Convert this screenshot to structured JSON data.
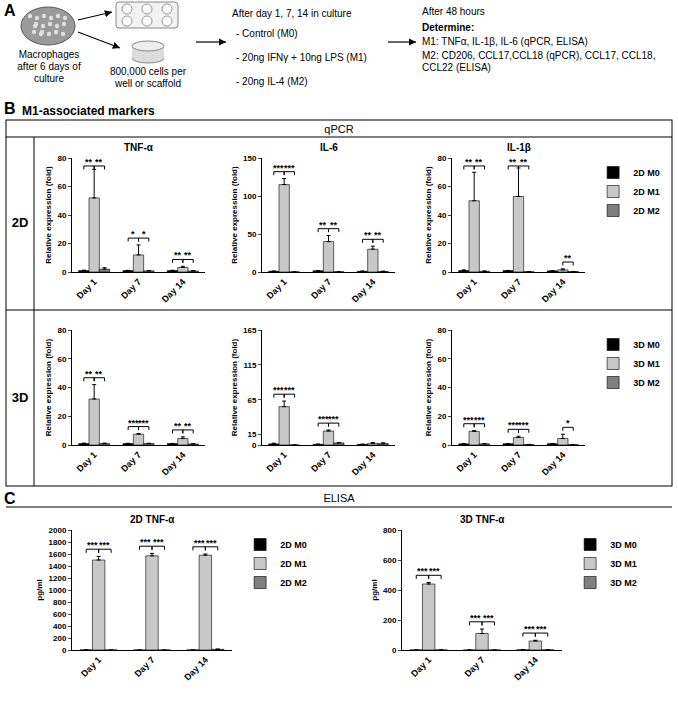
{
  "panel_a": {
    "label": "A",
    "cells": "Macrophages after 6 days of culture",
    "seeding": "800,000 cells per well or scaffold",
    "treatment_title": "After day 1, 7, 14 in culture",
    "treatments": [
      "- Control (M0)",
      "- 20ng IFNγ + 10ng LPS (M1)",
      "- 20ng IL-4 (M2)"
    ],
    "readout_title": "After 48 hours",
    "readout_heading": "Determine:",
    "readouts": [
      "M1: TNFα, IL-1β, IL-6 (qPCR, ELISA)",
      "M2: CD206, CCL17,CCL18 (qPCR), CCL17, CCL18, CCL22 (ELISA)"
    ]
  },
  "panel_b": {
    "label": "B",
    "title": "M1-associated markers",
    "method": "qPCR",
    "rows": [
      "2D",
      "3D"
    ]
  },
  "panel_c": {
    "label": "C",
    "method": "ELISA"
  },
  "chart_data": [
    {
      "type": "bar",
      "title": "TNF-α",
      "y_label": "Relative expression (fold)",
      "categories": [
        "Day 1",
        "Day 7",
        "Day 14"
      ],
      "series": [
        {
          "name": "2D M0",
          "color": "#000000",
          "values": [
            1,
            1,
            1
          ],
          "errors": [
            0.3,
            0.2,
            0.2
          ]
        },
        {
          "name": "2D M1",
          "color": "#c8c8c8",
          "values": [
            52,
            12,
            3.2
          ],
          "errors": [
            20,
            7,
            0.8
          ]
        },
        {
          "name": "2D M2",
          "color": "#7f7f7f",
          "values": [
            2,
            0.8,
            0.7
          ],
          "errors": [
            1,
            0.2,
            0.3
          ]
        }
      ],
      "ylim": [
        0,
        80
      ],
      "yticks": [
        0,
        20,
        40,
        60,
        80
      ],
      "annotations": [
        {
          "text": "**",
          "category": 0,
          "between": [
            0,
            1
          ]
        },
        {
          "text": "**",
          "category": 0,
          "between": [
            1,
            2
          ]
        },
        {
          "text": "*",
          "category": 1,
          "between": [
            0,
            1
          ]
        },
        {
          "text": "*",
          "category": 1,
          "between": [
            1,
            2
          ]
        },
        {
          "text": "**",
          "category": 2,
          "between": [
            0,
            1
          ]
        },
        {
          "text": "**",
          "category": 2,
          "between": [
            1,
            2
          ]
        }
      ]
    },
    {
      "type": "bar",
      "title": "IL-6",
      "y_label": "Relative expression (fold)",
      "categories": [
        "Day 1",
        "Day 7",
        "Day 14"
      ],
      "series": [
        {
          "name": "2D M0",
          "color": "#000000",
          "values": [
            1,
            1.6,
            0.9
          ],
          "errors": [
            0.2,
            0.3,
            0.3
          ]
        },
        {
          "name": "2D M1",
          "color": "#c8c8c8",
          "values": [
            115,
            40,
            30
          ],
          "errors": [
            8,
            8,
            4
          ]
        },
        {
          "name": "2D M2",
          "color": "#7f7f7f",
          "values": [
            0.1,
            0.3,
            0.7
          ],
          "errors": [
            0.05,
            0.1,
            0.4
          ]
        }
      ],
      "ylim": [
        0,
        150
      ],
      "yticks": [
        0,
        50,
        100,
        150
      ],
      "annotations": [
        {
          "text": "***",
          "category": 0,
          "between": [
            0,
            1
          ]
        },
        {
          "text": "***",
          "category": 0,
          "between": [
            1,
            2
          ]
        },
        {
          "text": "**",
          "category": 1,
          "between": [
            0,
            1
          ]
        },
        {
          "text": "**",
          "category": 1,
          "between": [
            1,
            2
          ]
        },
        {
          "text": "**",
          "category": 2,
          "between": [
            0,
            1
          ]
        },
        {
          "text": "**",
          "category": 2,
          "between": [
            1,
            2
          ]
        }
      ]
    },
    {
      "type": "bar",
      "title": "IL-1β",
      "y_label": "Relative expression (fold)",
      "legend": "right",
      "categories": [
        "Day 1",
        "Day 7",
        "Day 14"
      ],
      "series": [
        {
          "name": "2D M0",
          "color": "#000000",
          "values": [
            1,
            1,
            0.8
          ],
          "errors": [
            0.5,
            0.1,
            0.1
          ]
        },
        {
          "name": "2D M1",
          "color": "#c8c8c8",
          "values": [
            50,
            53,
            1.5
          ],
          "errors": [
            20,
            20,
            0.7
          ]
        },
        {
          "name": "2D M2",
          "color": "#7f7f7f",
          "values": [
            0.5,
            0.2,
            0.3
          ],
          "errors": [
            0.2,
            0.1,
            0.1
          ]
        }
      ],
      "ylim": [
        0,
        80
      ],
      "yticks": [
        0,
        20,
        40,
        60,
        80
      ],
      "annotations": [
        {
          "text": "**",
          "category": 0,
          "between": [
            0,
            1
          ]
        },
        {
          "text": "**",
          "category": 0,
          "between": [
            1,
            2
          ]
        },
        {
          "text": "**",
          "category": 1,
          "between": [
            0,
            1
          ]
        },
        {
          "text": "**",
          "category": 1,
          "between": [
            1,
            2
          ]
        },
        {
          "text": "**",
          "category": 2,
          "between": [
            1,
            2
          ]
        }
      ]
    },
    {
      "type": "bar",
      "y_label": "Relative expression (fold)",
      "categories": [
        "Day 1",
        "Day 7",
        "Day 14"
      ],
      "series": [
        {
          "name": "3D M0",
          "color": "#000000",
          "values": [
            1,
            1,
            1
          ],
          "errors": [
            0.3,
            0.2,
            0.1
          ]
        },
        {
          "name": "3D M1",
          "color": "#c8c8c8",
          "values": [
            32,
            7.5,
            4.5
          ],
          "errors": [
            10,
            0.5,
            1.2
          ]
        },
        {
          "name": "3D M2",
          "color": "#7f7f7f",
          "values": [
            1,
            1,
            0.7
          ],
          "errors": [
            0.3,
            0.2,
            0.3
          ]
        }
      ],
      "ylim": [
        0,
        80
      ],
      "yticks": [
        0,
        20,
        40,
        60,
        80
      ],
      "annotations": [
        {
          "text": "**",
          "category": 0,
          "between": [
            0,
            1
          ]
        },
        {
          "text": "**",
          "category": 0,
          "between": [
            1,
            2
          ]
        },
        {
          "text": "***",
          "category": 1,
          "between": [
            0,
            1
          ]
        },
        {
          "text": "***",
          "category": 1,
          "between": [
            1,
            2
          ]
        },
        {
          "text": "**",
          "category": 2,
          "between": [
            0,
            1
          ]
        },
        {
          "text": "**",
          "category": 2,
          "between": [
            1,
            2
          ]
        }
      ]
    },
    {
      "type": "bar",
      "y_label": "Relative expression (fold)",
      "categories": [
        "Day 1",
        "Day 7",
        "Day 14"
      ],
      "series": [
        {
          "name": "3D M0",
          "color": "#000000",
          "values": [
            1.6,
            1,
            0.9
          ],
          "errors": [
            1,
            0.2,
            0.2
          ]
        },
        {
          "name": "3D M1",
          "color": "#c8c8c8",
          "values": [
            55,
            20,
            2.4
          ],
          "errors": [
            8,
            1.5,
            1.2
          ]
        },
        {
          "name": "3D M2",
          "color": "#7f7f7f",
          "values": [
            0.05,
            3,
            2
          ],
          "errors": [
            0.02,
            0.4,
            1.2
          ]
        }
      ],
      "ylim": [
        0,
        165
      ],
      "yticks": [
        0,
        15,
        65,
        115,
        165
      ],
      "annotations": [
        {
          "text": "***",
          "category": 0,
          "between": [
            0,
            1
          ]
        },
        {
          "text": "***",
          "category": 0,
          "between": [
            1,
            2
          ]
        },
        {
          "text": "***",
          "category": 1,
          "between": [
            0,
            1
          ]
        },
        {
          "text": "***",
          "category": 1,
          "between": [
            1,
            2
          ]
        }
      ]
    },
    {
      "type": "bar",
      "y_label": "Relative expression (fold)",
      "legend": "right",
      "categories": [
        "Day 1",
        "Day 7",
        "Day 14"
      ],
      "series": [
        {
          "name": "3D M0",
          "color": "#000000",
          "values": [
            0.8,
            0.9,
            0.9
          ],
          "errors": [
            0.2,
            0.1,
            0.2
          ]
        },
        {
          "name": "3D M1",
          "color": "#c8c8c8",
          "values": [
            9.5,
            5.2,
            4.5
          ],
          "errors": [
            0.5,
            0.9,
            3
          ]
        },
        {
          "name": "3D M2",
          "color": "#7f7f7f",
          "values": [
            0.8,
            0.3,
            0.2
          ],
          "errors": [
            0.2,
            0.1,
            0.05
          ]
        }
      ],
      "ylim": [
        0,
        80
      ],
      "yticks": [
        0,
        20,
        40,
        60,
        80
      ],
      "annotations": [
        {
          "text": "***",
          "category": 0,
          "between": [
            0,
            1
          ]
        },
        {
          "text": "***",
          "category": 0,
          "between": [
            1,
            2
          ]
        },
        {
          "text": "***",
          "category": 1,
          "between": [
            0,
            1
          ]
        },
        {
          "text": "***",
          "category": 1,
          "between": [
            1,
            2
          ]
        },
        {
          "text": "*",
          "category": 2,
          "between": [
            1,
            2
          ]
        }
      ]
    },
    {
      "type": "bar",
      "title": "2D TNF-α",
      "y_label": "pg/ml",
      "legend": "right",
      "categories": [
        "Day 1",
        "Day 7",
        "Day 14"
      ],
      "series": [
        {
          "name": "2D M0",
          "color": "#000000",
          "values": [
            1.5,
            0.3,
            1
          ],
          "errors": [
            0.5,
            0.2,
            0.5
          ]
        },
        {
          "name": "2D M1",
          "color": "#c8c8c8",
          "values": [
            1500,
            1570,
            1580
          ],
          "errors": [
            60,
            40,
            20
          ]
        },
        {
          "name": "2D M2",
          "color": "#7f7f7f",
          "values": [
            0.5,
            0,
            11
          ],
          "errors": [
            0.3,
            0,
            5
          ]
        }
      ],
      "ylim": [
        0,
        2000
      ],
      "yticks": [
        0,
        200,
        400,
        600,
        800,
        1000,
        1200,
        1400,
        1600,
        1800,
        2000
      ],
      "annotations": [
        {
          "text": "***",
          "category": 0,
          "between": [
            0,
            1
          ]
        },
        {
          "text": "***",
          "category": 0,
          "between": [
            1,
            2
          ]
        },
        {
          "text": "***",
          "category": 1,
          "between": [
            0,
            1
          ]
        },
        {
          "text": "***",
          "category": 1,
          "between": [
            1,
            2
          ]
        },
        {
          "text": "***",
          "category": 2,
          "between": [
            0,
            1
          ]
        },
        {
          "text": "***",
          "category": 2,
          "between": [
            1,
            2
          ]
        }
      ]
    },
    {
      "type": "bar",
      "title": "3D TNF-α",
      "y_label": "pg/ml",
      "legend": "right",
      "categories": [
        "Day 1",
        "Day 7",
        "Day 14"
      ],
      "series": [
        {
          "name": "3D M0",
          "color": "#000000",
          "values": [
            0.3,
            0.1,
            1
          ],
          "errors": [
            0.3,
            0.05,
            1
          ]
        },
        {
          "name": "3D M1",
          "color": "#c8c8c8",
          "values": [
            440,
            110,
            60
          ],
          "errors": [
            10,
            30,
            5
          ]
        },
        {
          "name": "3D M2",
          "color": "#7f7f7f",
          "values": [
            0.5,
            0.1,
            1
          ],
          "errors": [
            0.2,
            0.05,
            0.7
          ]
        }
      ],
      "ylim": [
        0,
        800
      ],
      "yticks": [
        0,
        200,
        400,
        600,
        800
      ],
      "annotations": [
        {
          "text": "***",
          "category": 0,
          "between": [
            0,
            1
          ]
        },
        {
          "text": "***",
          "category": 0,
          "between": [
            1,
            2
          ]
        },
        {
          "text": "***",
          "category": 1,
          "between": [
            0,
            1
          ]
        },
        {
          "text": "***",
          "category": 1,
          "between": [
            1,
            2
          ]
        },
        {
          "text": "***",
          "category": 2,
          "between": [
            0,
            1
          ]
        },
        {
          "text": "***",
          "category": 2,
          "between": [
            1,
            2
          ]
        }
      ]
    }
  ]
}
